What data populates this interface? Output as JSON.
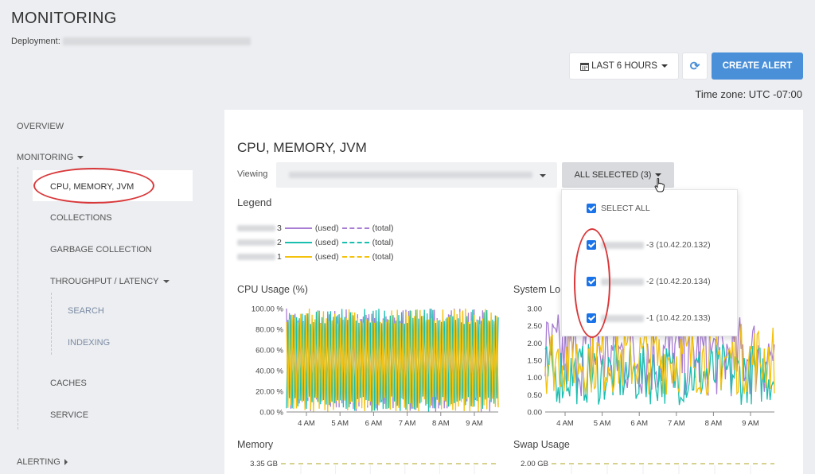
{
  "page": {
    "title": "MONITORING",
    "deployment_label": "Deployment:"
  },
  "toolbar": {
    "range_icon": "calendar-icon",
    "range_label": "LAST 6 HOURS",
    "refresh_icon": "refresh-icon",
    "refresh_glyph": "⟳",
    "create_label": "CREATE ALERT",
    "timezone": "Time zone: UTC -07:00"
  },
  "sidebar": {
    "overview": "OVERVIEW",
    "monitoring": "MONITORING",
    "items": [
      "CPU, MEMORY, JVM",
      "COLLECTIONS",
      "GARBAGE COLLECTION",
      "THROUGHPUT / LATENCY"
    ],
    "sub_items": [
      "SEARCH",
      "INDEXING"
    ],
    "items2": [
      "CACHES",
      "SERVICE"
    ],
    "alerting": "ALERTING"
  },
  "main": {
    "title": "CPU, MEMORY, JVM",
    "viewing_label": "Viewing",
    "all_selected_label": "ALL SELECTED (3)",
    "legend_title": "Legend",
    "legend": [
      {
        "suffix": "3",
        "used": "(used)",
        "total": "(total)",
        "color": "#a77ed3"
      },
      {
        "suffix": "2",
        "used": "(used)",
        "total": "(total)",
        "color": "#1abfb0"
      },
      {
        "suffix": "1",
        "used": "(used)",
        "total": "(total)",
        "color": "#f4c20d"
      }
    ]
  },
  "dropdown": {
    "select_all": "SELECT ALL",
    "nodes": [
      {
        "suffix": "-3",
        "ip": "(10.42.20.132)"
      },
      {
        "suffix": "-2",
        "ip": "(10.42.20.134)"
      },
      {
        "suffix": "-1",
        "ip": "(10.42.20.133)"
      }
    ]
  },
  "charts": {
    "memory_title": "Memory",
    "swap_title": "Swap Usage"
  },
  "chart_data": [
    {
      "type": "line",
      "title": "CPU Usage (%)",
      "y_ticks": [
        "100.00 %",
        "80.00 %",
        "60.00 %",
        "40.00 %",
        "20.00 %",
        "0.00 %"
      ],
      "x_ticks": [
        "4 AM",
        "5 AM",
        "6 AM",
        "7 AM",
        "8 AM",
        "9 AM"
      ],
      "ylim": [
        0,
        100
      ],
      "series": [
        {
          "color": "#a77ed3",
          "pattern": "oscillating",
          "min": 0,
          "max": 100
        },
        {
          "color": "#1abfb0",
          "pattern": "oscillating",
          "min": 0,
          "max": 100
        },
        {
          "color": "#f4c20d",
          "pattern": "oscillating",
          "min": 0,
          "max": 100
        }
      ]
    },
    {
      "type": "line",
      "title": "System Lo",
      "y_ticks": [
        "3.00",
        "2.50",
        "2.00",
        "1.50",
        "1.00",
        "0.50",
        "0.00"
      ],
      "x_ticks": [
        "4 AM",
        "5 AM",
        "6 AM",
        "7 AM",
        "8 AM",
        "9 AM"
      ],
      "ylim": [
        0,
        3
      ],
      "series": [
        {
          "color": "#a77ed3",
          "pattern": "noisy",
          "min": 0.4,
          "max": 2.9
        },
        {
          "color": "#1abfb0",
          "pattern": "noisy",
          "min": 0.2,
          "max": 2.0
        },
        {
          "color": "#f4c20d",
          "pattern": "noisy",
          "min": 0.5,
          "max": 2.6
        }
      ]
    },
    {
      "type": "line",
      "title": "Memory",
      "y_ticks": [
        "3.35 GB"
      ],
      "ylim": [
        0,
        3.35
      ],
      "series": [
        {
          "color": "#c9c26a",
          "style": "dashed"
        }
      ]
    },
    {
      "type": "line",
      "title": "Swap Usage",
      "y_ticks": [
        "2.00 GB"
      ],
      "ylim": [
        0,
        2.0
      ],
      "series": [
        {
          "color": "#c9c26a",
          "style": "dashed"
        }
      ]
    }
  ]
}
